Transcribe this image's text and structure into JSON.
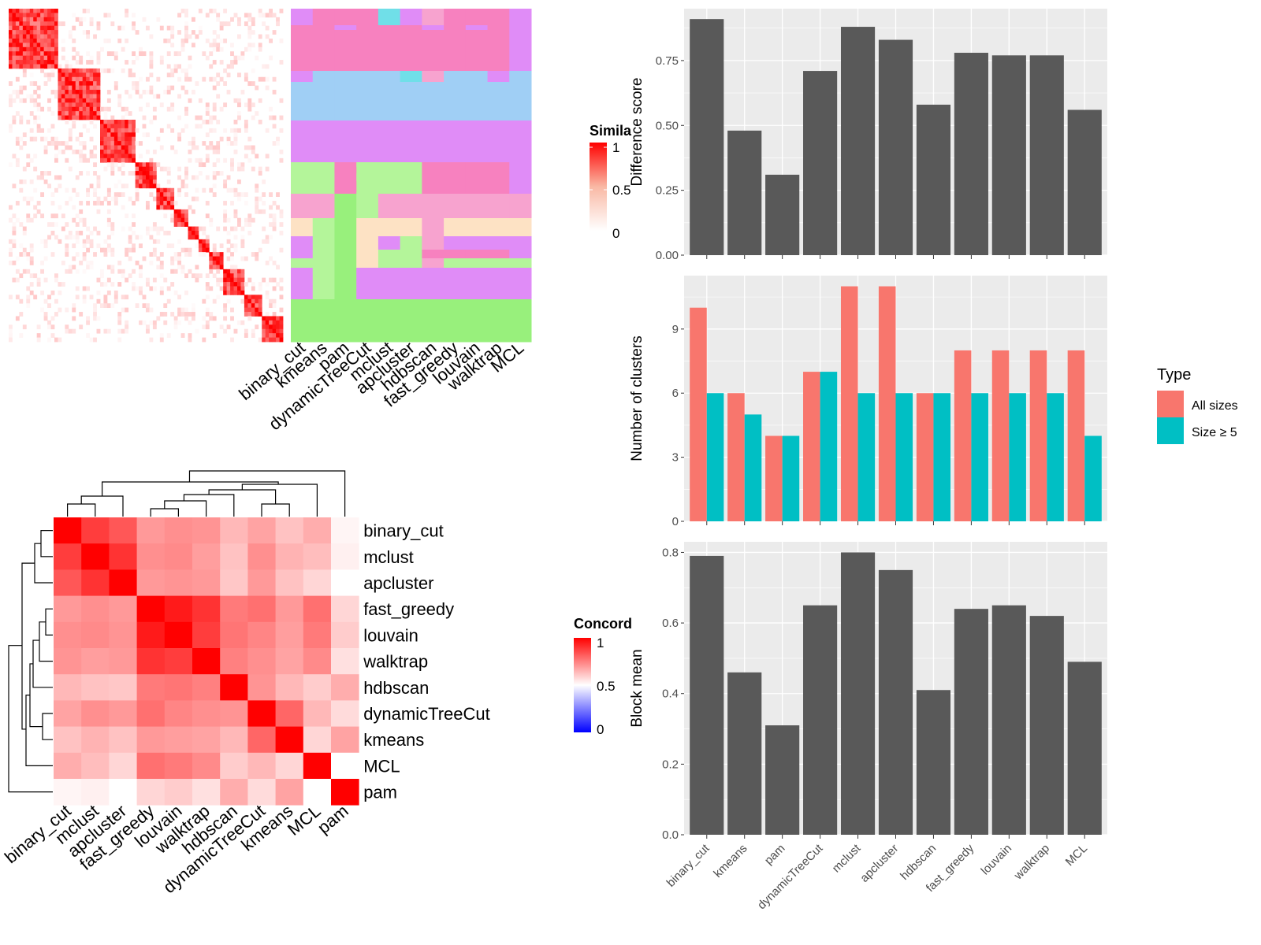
{
  "methods_similarity_heatmap": {
    "legend_title": "Simila",
    "legend_ticks": [
      "1",
      "0.5",
      "0"
    ],
    "column_labels": [
      "binary_cut",
      "kmeans",
      "pam",
      "dynamicTreeCut",
      "mclust",
      "apcluster",
      "hdbscan",
      "fast_greedy",
      "louvain",
      "walktrap",
      "MCL"
    ],
    "class_colors": {
      "pink": "#f781bf",
      "blue": "#a0cff5",
      "violet": "#e08cf7",
      "green": "#98f07c",
      "lightgreen": "#b4f59a",
      "lightpink": "#f7a3cf",
      "peach": "#fde2c4",
      "cyan": "#70dfe8",
      "red": "#ff0000",
      "white": "#ffffff"
    }
  },
  "concordance_heatmap": {
    "legend_title": "Concord",
    "legend_ticks": [
      "1",
      "0.5",
      "0"
    ],
    "row_labels": [
      "binary_cut",
      "mclust",
      "apcluster",
      "fast_greedy",
      "louvain",
      "walktrap",
      "hdbscan",
      "dynamicTreeCut",
      "kmeans",
      "MCL",
      "pam"
    ],
    "column_labels": [
      "binary_cut",
      "mclust",
      "apcluster",
      "fast_greedy",
      "louvain",
      "walktrap",
      "hdbscan",
      "dynamicTreeCut",
      "kmeans",
      "MCL",
      "pam"
    ],
    "matrix": [
      [
        1.0,
        0.88,
        0.83,
        0.7,
        0.72,
        0.71,
        0.64,
        0.68,
        0.62,
        0.66,
        0.52
      ],
      [
        0.88,
        1.0,
        0.9,
        0.72,
        0.73,
        0.69,
        0.62,
        0.72,
        0.65,
        0.63,
        0.53
      ],
      [
        0.83,
        0.9,
        1.0,
        0.7,
        0.71,
        0.7,
        0.61,
        0.7,
        0.62,
        0.58,
        0.5
      ],
      [
        0.7,
        0.72,
        0.7,
        1.0,
        0.95,
        0.9,
        0.76,
        0.78,
        0.7,
        0.78,
        0.58
      ],
      [
        0.72,
        0.73,
        0.71,
        0.95,
        1.0,
        0.88,
        0.77,
        0.74,
        0.69,
        0.76,
        0.6
      ],
      [
        0.71,
        0.69,
        0.7,
        0.9,
        0.88,
        1.0,
        0.75,
        0.72,
        0.68,
        0.73,
        0.56
      ],
      [
        0.64,
        0.62,
        0.61,
        0.76,
        0.77,
        0.75,
        1.0,
        0.71,
        0.64,
        0.6,
        0.66
      ],
      [
        0.68,
        0.72,
        0.7,
        0.78,
        0.74,
        0.72,
        0.71,
        1.0,
        0.8,
        0.64,
        0.57
      ],
      [
        0.62,
        0.65,
        0.62,
        0.7,
        0.69,
        0.68,
        0.64,
        0.8,
        1.0,
        0.58,
        0.68
      ],
      [
        0.66,
        0.63,
        0.58,
        0.78,
        0.76,
        0.73,
        0.6,
        0.64,
        0.58,
        1.0,
        0.5
      ],
      [
        0.52,
        0.53,
        0.5,
        0.58,
        0.6,
        0.56,
        0.66,
        0.57,
        0.68,
        0.5,
        1.0
      ]
    ],
    "scale_colors": {
      "low": "#0000ff",
      "mid": "#ffffff",
      "high": "#ff0000"
    }
  },
  "chart_data": [
    {
      "type": "bar",
      "categories": [
        "binary_cut",
        "kmeans",
        "pam",
        "dynamicTreeCut",
        "mclust",
        "apcluster",
        "hdbscan",
        "fast_greedy",
        "louvain",
        "walktrap",
        "MCL"
      ],
      "values": [
        0.91,
        0.48,
        0.31,
        0.71,
        0.88,
        0.83,
        0.58,
        0.78,
        0.77,
        0.77,
        0.56
      ],
      "title": "",
      "xlabel": "",
      "ylabel": "Difference score",
      "ylim": [
        0,
        0.95
      ],
      "yticks": [
        "0.00",
        "0.25",
        "0.50",
        "0.75"
      ],
      "bar_color": "#595959"
    },
    {
      "type": "bar",
      "categories": [
        "binary_cut",
        "kmeans",
        "pam",
        "dynamicTreeCut",
        "mclust",
        "apcluster",
        "hdbscan",
        "fast_greedy",
        "louvain",
        "walktrap",
        "MCL"
      ],
      "series": [
        {
          "name": "All sizes",
          "values": [
            10,
            6,
            4,
            7,
            11,
            11,
            6,
            8,
            8,
            8,
            8
          ],
          "color": "#f8766d"
        },
        {
          "name": "Size ≥ 5",
          "values": [
            6,
            5,
            4,
            7,
            6,
            6,
            6,
            6,
            6,
            6,
            4
          ],
          "color": "#00bfc4"
        }
      ],
      "title": "",
      "xlabel": "",
      "ylabel": "Number of clusters",
      "legend_title": "Type",
      "legend_position": "right",
      "ylim": [
        0,
        11.5
      ],
      "yticks": [
        "0",
        "3",
        "6",
        "9"
      ]
    },
    {
      "type": "bar",
      "categories": [
        "binary_cut",
        "kmeans",
        "pam",
        "dynamicTreeCut",
        "mclust",
        "apcluster",
        "hdbscan",
        "fast_greedy",
        "louvain",
        "walktrap",
        "MCL"
      ],
      "values": [
        0.79,
        0.46,
        0.31,
        0.65,
        0.8,
        0.75,
        0.41,
        0.64,
        0.65,
        0.62,
        0.49
      ],
      "title": "",
      "xlabel": "",
      "ylabel": "Block mean",
      "ylim": [
        0,
        0.83
      ],
      "yticks": [
        "0.0",
        "0.2",
        "0.4",
        "0.6",
        "0.8"
      ],
      "bar_color": "#595959"
    }
  ]
}
